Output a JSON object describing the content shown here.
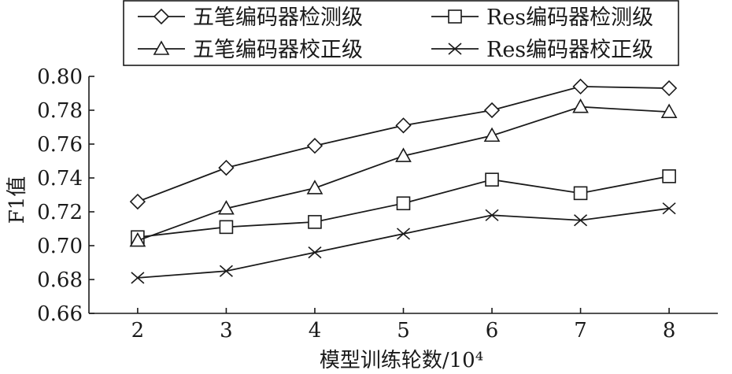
{
  "chart_data": {
    "type": "line",
    "xlabel": "模型训练轮数/10⁴",
    "ylabel": "F1值",
    "x": [
      2,
      3,
      4,
      5,
      6,
      7,
      8
    ],
    "xlim": [
      1.45,
      8.55
    ],
    "ylim": [
      0.66,
      0.8
    ],
    "yticks": [
      "0.66",
      "0.68",
      "0.70",
      "0.72",
      "0.74",
      "0.76",
      "0.78",
      "0.80"
    ],
    "grid": false,
    "legend_position": "top",
    "series": [
      {
        "name": "五笔编码器检测级",
        "marker": "diamond",
        "values": [
          0.726,
          0.746,
          0.759,
          0.771,
          0.78,
          0.794,
          0.793
        ]
      },
      {
        "name": "Res编码器检测级",
        "marker": "square",
        "values": [
          0.705,
          0.711,
          0.714,
          0.725,
          0.739,
          0.731,
          0.741
        ]
      },
      {
        "name": "五笔编码器校正级",
        "marker": "triangle",
        "values": [
          0.703,
          0.722,
          0.734,
          0.753,
          0.765,
          0.782,
          0.779
        ]
      },
      {
        "name": "Res编码器校正级",
        "marker": "x",
        "values": [
          0.681,
          0.685,
          0.696,
          0.707,
          0.718,
          0.715,
          0.722
        ]
      }
    ]
  }
}
